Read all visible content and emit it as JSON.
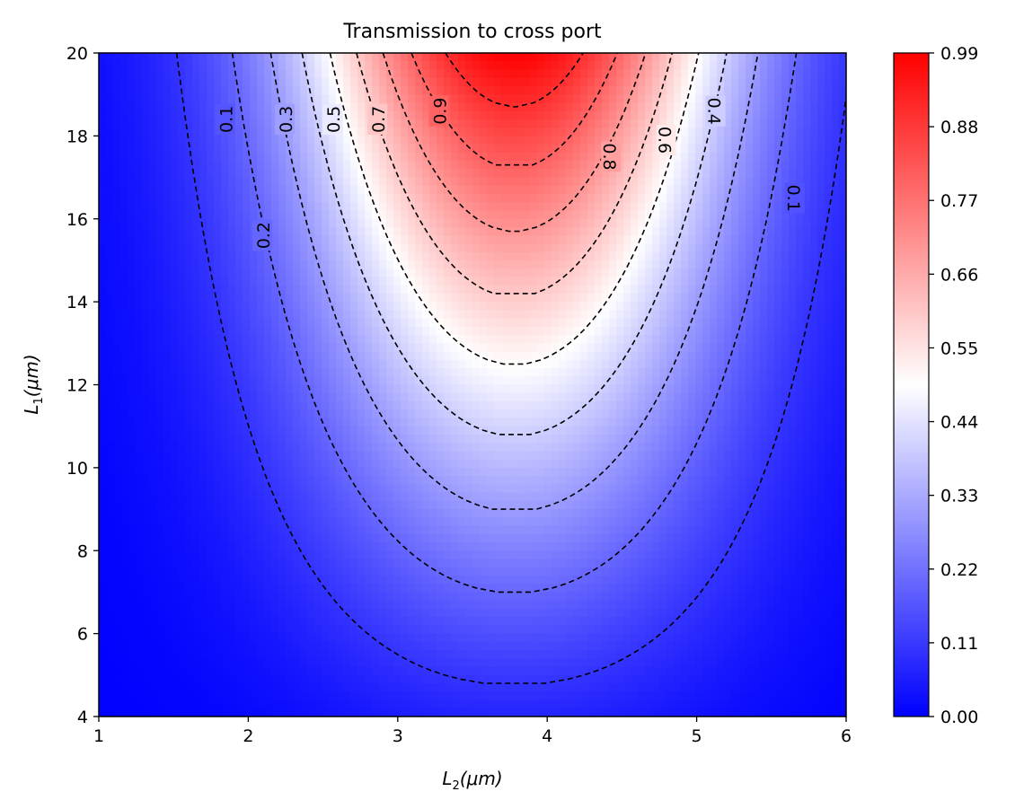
{
  "chart_data": {
    "type": "heatmap",
    "title": "Transmission to cross port",
    "xlabel": {
      "base": "L",
      "sub": "2",
      "unit": "(μm)"
    },
    "ylabel": {
      "base": "L",
      "sub": "1",
      "unit": "(μm)"
    },
    "xlim": [
      1,
      6
    ],
    "ylim": [
      4,
      20
    ],
    "x_ticks": [
      "1",
      "2",
      "3",
      "4",
      "5",
      "6"
    ],
    "y_ticks": [
      "4",
      "6",
      "8",
      "10",
      "12",
      "14",
      "16",
      "18",
      "20"
    ],
    "colorbar": {
      "range": [
        0.0,
        0.99
      ],
      "colors": [
        "#0000ff",
        "#ffffff",
        "#ff0000"
      ],
      "ticks": [
        "0.00",
        "0.11",
        "0.22",
        "0.33",
        "0.44",
        "0.55",
        "0.66",
        "0.77",
        "0.88",
        "0.99"
      ]
    },
    "field_model": {
      "peak_x": 3.78,
      "x_half_width_at_y20": 1.6,
      "y_exponent": 1.3,
      "value_at_peak_y20": 0.99,
      "description_of_shape": "peak near L2≈3.8, increasing with L1"
    },
    "contours": {
      "levels": [
        0.1,
        0.2,
        0.3,
        0.4,
        0.5,
        0.6,
        0.7,
        0.8,
        0.9
      ],
      "style": "dashed",
      "color": "#000000",
      "labels": [
        {
          "text": "0.1",
          "x": 1.85,
          "y": 18.4
        },
        {
          "text": "0.3",
          "x": 2.25,
          "y": 18.4
        },
        {
          "text": "0.5",
          "x": 2.57,
          "y": 18.4
        },
        {
          "text": "0.7",
          "x": 2.87,
          "y": 18.4
        },
        {
          "text": "0.9",
          "x": 3.28,
          "y": 18.6
        },
        {
          "text": "0.2",
          "x": 2.1,
          "y": 15.6
        },
        {
          "text": "0.8",
          "x": 4.42,
          "y": 17.5
        },
        {
          "text": "0.6",
          "x": 4.79,
          "y": 17.9
        },
        {
          "text": "0.4",
          "x": 5.12,
          "y": 18.6
        },
        {
          "text": "0.1",
          "x": 5.65,
          "y": 16.5
        }
      ]
    }
  }
}
